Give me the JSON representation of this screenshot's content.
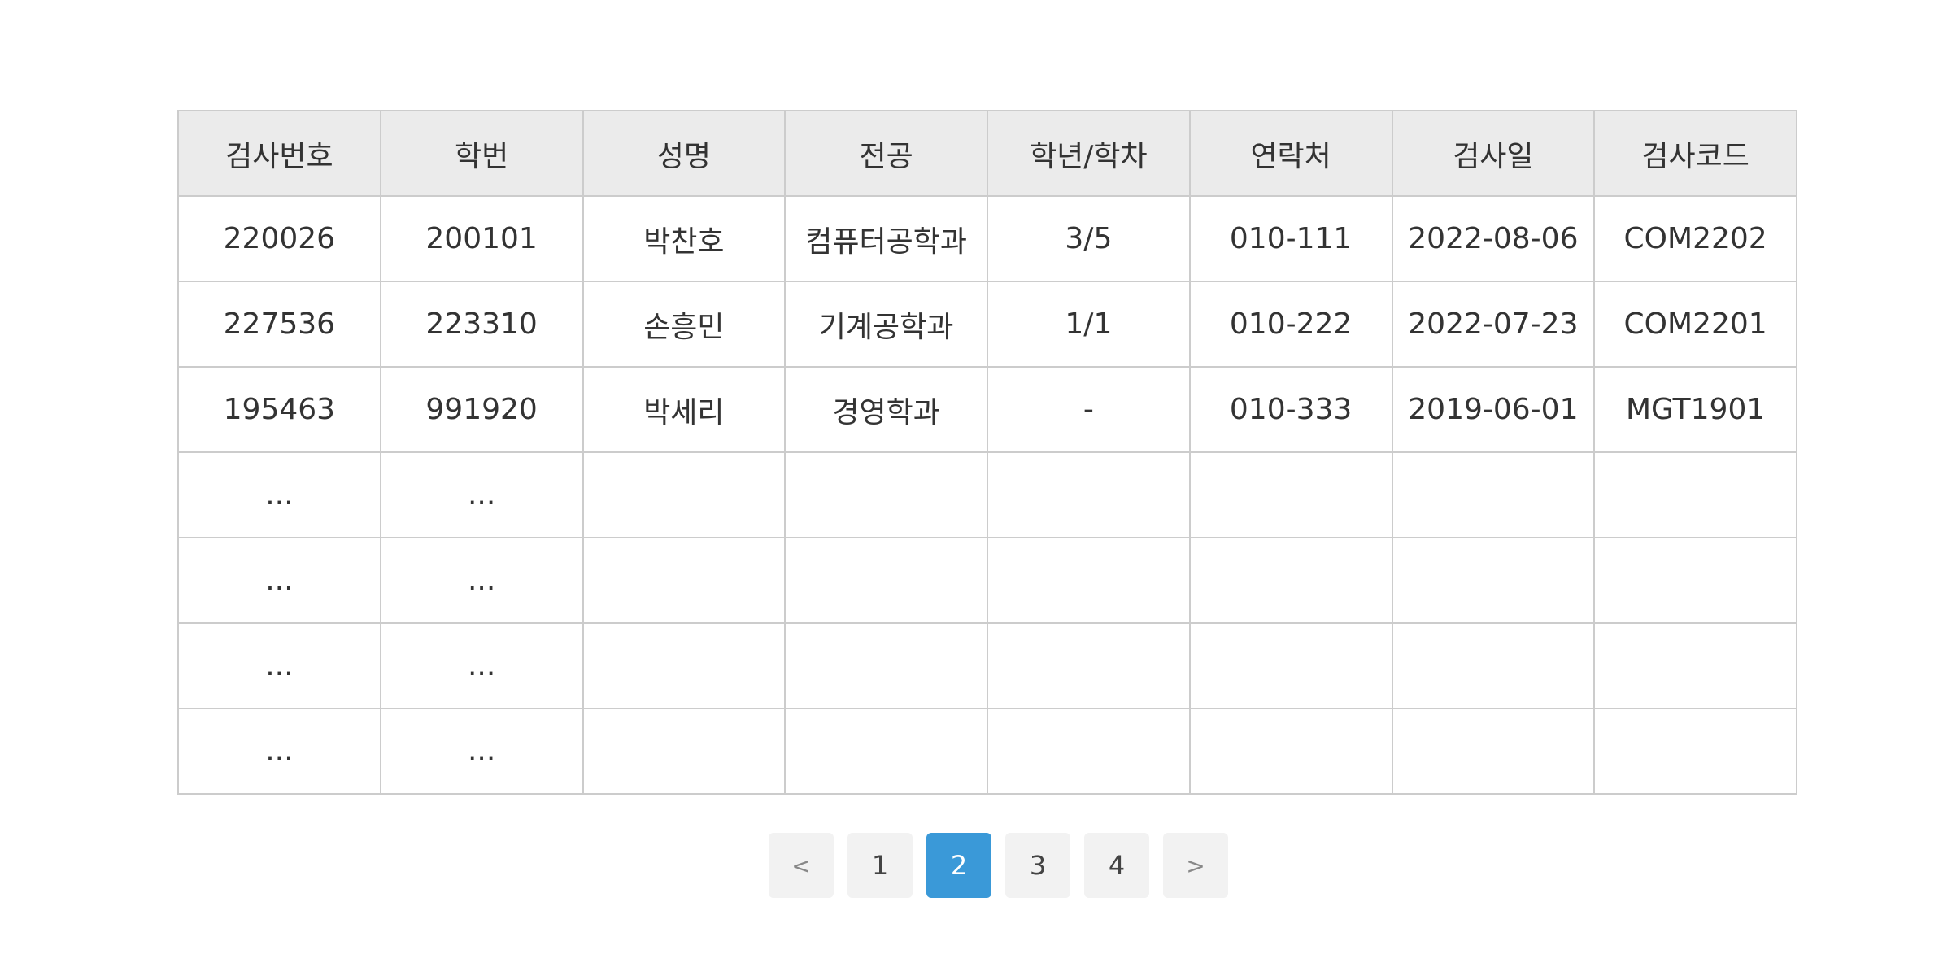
{
  "table": {
    "headers": [
      "검사번호",
      "학번",
      "성명",
      "전공",
      "학년/학차",
      "연락처",
      "검사일",
      "검사코드"
    ],
    "rows": [
      [
        "220026",
        "200101",
        "박찬호",
        "컴퓨터공학과",
        "3/5",
        "010-111",
        "2022-08-06",
        "COM2202"
      ],
      [
        "227536",
        "223310",
        "손흥민",
        "기계공학과",
        "1/1",
        "010-222",
        "2022-07-23",
        "COM2201"
      ],
      [
        "195463",
        "991920",
        "박세리",
        "경영학과",
        "-",
        "010-333",
        "2019-06-01",
        "MGT1901"
      ],
      [
        "...",
        "...",
        "",
        "",
        "",
        "",
        "",
        ""
      ],
      [
        "...",
        "...",
        "",
        "",
        "",
        "",
        "",
        ""
      ],
      [
        "...",
        "...",
        "",
        "",
        "",
        "",
        "",
        ""
      ],
      [
        "...",
        "...",
        "",
        "",
        "",
        "",
        "",
        ""
      ]
    ]
  },
  "pagination": {
    "prev_label": "<",
    "next_label": ">",
    "pages": [
      "1",
      "2",
      "3",
      "4"
    ],
    "current_page": "2",
    "colors": {
      "active_bg": "#3a99d8",
      "inactive_bg": "#f2f2f2"
    }
  }
}
